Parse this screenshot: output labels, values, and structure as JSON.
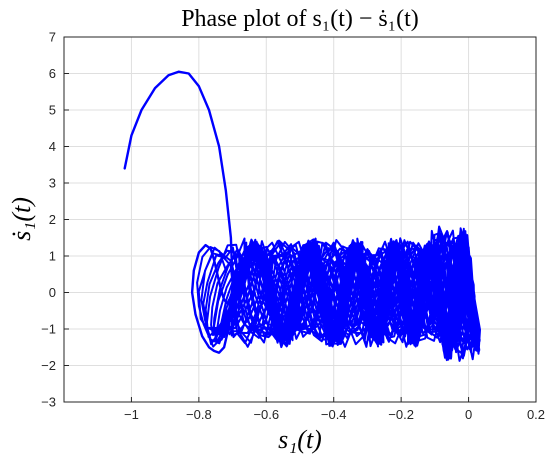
{
  "chart_data": {
    "type": "line",
    "title": "Phase plot of s₁(t) − ṡ₁(t)",
    "xlabel": "s₁(t)",
    "ylabel": "ṡ₁(t)",
    "xlim": [
      -1.2,
      0.2
    ],
    "ylim": [
      -3,
      7
    ],
    "xticks": [
      -1,
      -0.8,
      -0.6,
      -0.4,
      -0.2,
      0,
      0.2
    ],
    "xtick_labels": [
      "−1",
      "−0.8",
      "−0.6",
      "−0.4",
      "−0.2",
      "0",
      "0.2"
    ],
    "yticks": [
      -3,
      -2,
      -1,
      0,
      1,
      2,
      3,
      4,
      5,
      6,
      7
    ],
    "ytick_labels": [
      "−3",
      "−2",
      "−1",
      "0",
      "1",
      "2",
      "3",
      "4",
      "5",
      "6",
      "7"
    ],
    "grid": true,
    "color": "#0000ff",
    "series": [
      {
        "description": "initial large excursion",
        "x": [
          -1.02,
          -1.0,
          -0.97,
          -0.93,
          -0.89,
          -0.86,
          -0.83,
          -0.8,
          -0.77,
          -0.74,
          -0.72,
          -0.705,
          -0.7,
          -0.71,
          -0.725,
          -0.74,
          -0.755,
          -0.77,
          -0.79,
          -0.81,
          -0.82,
          -0.815,
          -0.8,
          -0.78,
          -0.765,
          -0.755,
          -0.745,
          -0.735,
          -0.725,
          -0.715,
          -0.71
        ],
        "y": [
          3.4,
          4.3,
          5.0,
          5.6,
          5.95,
          6.05,
          6.0,
          5.65,
          5.0,
          4.0,
          2.8,
          1.5,
          0.2,
          -0.9,
          -1.5,
          -1.65,
          -1.6,
          -1.5,
          -1.2,
          -0.6,
          0.0,
          0.6,
          1.1,
          1.3,
          1.2,
          0.9,
          0.5,
          0.1,
          -0.2,
          -0.3,
          -0.2
        ]
      }
    ],
    "oscillation_band": {
      "description": "dense oscillation cloud drifting right and tightening near s1 = 0",
      "x_range": [
        -0.82,
        0.04
      ],
      "y_range": [
        -1.9,
        2.0
      ]
    }
  }
}
